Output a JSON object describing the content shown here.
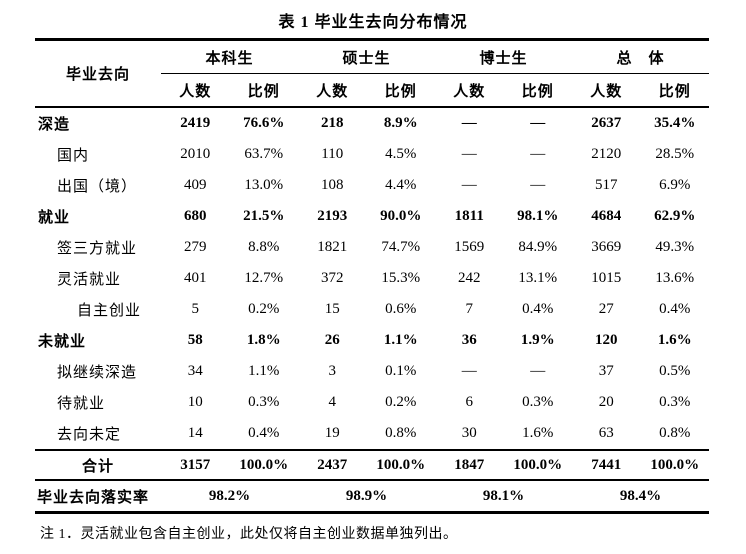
{
  "title": "表 1 毕业生去向分布情况",
  "table": {
    "header": {
      "row_label": "毕业去向",
      "groups": [
        {
          "label": "本科生"
        },
        {
          "label": "硕士生"
        },
        {
          "label": "博士生"
        },
        {
          "label": "总　体"
        }
      ],
      "subheaders": {
        "count": "人数",
        "ratio": "比例"
      }
    },
    "rows": [
      {
        "label": "深造",
        "indent": 0,
        "bold": true,
        "values": [
          "2419",
          "76.6%",
          "218",
          "8.9%",
          "—",
          "—",
          "2637",
          "35.4%"
        ]
      },
      {
        "label": "国内",
        "indent": 1,
        "bold": false,
        "values": [
          "2010",
          "63.7%",
          "110",
          "4.5%",
          "—",
          "—",
          "2120",
          "28.5%"
        ]
      },
      {
        "label": "出国（境）",
        "indent": 1,
        "bold": false,
        "values": [
          "409",
          "13.0%",
          "108",
          "4.4%",
          "—",
          "—",
          "517",
          "6.9%"
        ]
      },
      {
        "label": "就业",
        "indent": 0,
        "bold": true,
        "values": [
          "680",
          "21.5%",
          "2193",
          "90.0%",
          "1811",
          "98.1%",
          "4684",
          "62.9%"
        ]
      },
      {
        "label": "签三方就业",
        "indent": 1,
        "bold": false,
        "values": [
          "279",
          "8.8%",
          "1821",
          "74.7%",
          "1569",
          "84.9%",
          "3669",
          "49.3%"
        ]
      },
      {
        "label": "灵活就业",
        "indent": 1,
        "bold": false,
        "values": [
          "401",
          "12.7%",
          "372",
          "15.3%",
          "242",
          "13.1%",
          "1015",
          "13.6%"
        ]
      },
      {
        "label": "自主创业",
        "indent": 2,
        "bold": false,
        "values": [
          "5",
          "0.2%",
          "15",
          "0.6%",
          "7",
          "0.4%",
          "27",
          "0.4%"
        ]
      },
      {
        "label": "未就业",
        "indent": 0,
        "bold": true,
        "values": [
          "58",
          "1.8%",
          "26",
          "1.1%",
          "36",
          "1.9%",
          "120",
          "1.6%"
        ]
      },
      {
        "label": "拟继续深造",
        "indent": 1,
        "bold": false,
        "values": [
          "34",
          "1.1%",
          "3",
          "0.1%",
          "—",
          "—",
          "37",
          "0.5%"
        ]
      },
      {
        "label": "待就业",
        "indent": 1,
        "bold": false,
        "values": [
          "10",
          "0.3%",
          "4",
          "0.2%",
          "6",
          "0.3%",
          "20",
          "0.3%"
        ]
      },
      {
        "label": "去向未定",
        "indent": 1,
        "bold": false,
        "values": [
          "14",
          "0.4%",
          "19",
          "0.8%",
          "30",
          "1.6%",
          "63",
          "0.8%"
        ]
      }
    ],
    "total_row": {
      "label": "合计",
      "values": [
        "3157",
        "100.0%",
        "2437",
        "100.0%",
        "1847",
        "100.0%",
        "7441",
        "100.0%"
      ]
    },
    "rate_row": {
      "label": "毕业去向落实率",
      "values": [
        "98.2%",
        "98.9%",
        "98.1%",
        "98.4%"
      ]
    }
  },
  "note": "注 1．灵活就业包含自主创业，此处仅将自主创业数据单独列出。",
  "colors": {
    "text": "#000000",
    "background": "#ffffff",
    "border": "#000000"
  }
}
